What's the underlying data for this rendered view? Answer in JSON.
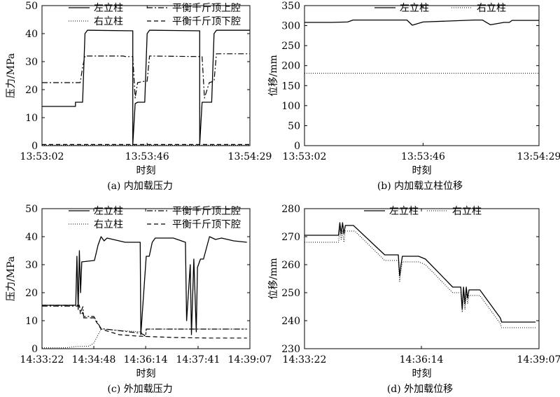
{
  "chart_data": [
    {
      "type": "line",
      "caption": "(a) 内加载压力",
      "xlabel": "时刻",
      "ylabel": "压力/MPa",
      "x_ticks": [
        "13:53:02",
        "13:53:46",
        "13:54:29"
      ],
      "xlim": [
        "13:53:02",
        "13:54:29"
      ],
      "y_ticks": [
        0,
        10,
        20,
        30,
        40,
        50
      ],
      "ylim": [
        0,
        50
      ],
      "legend": "top",
      "series": [
        {
          "name": "左立柱",
          "style": "solid",
          "x": [
            "13:53:02",
            "13:53:16",
            "13:53:16",
            "13:53:19",
            "13:53:20",
            "13:53:21",
            "13:53:22",
            "13:53:40",
            "13:53:40",
            "13:53:41",
            "13:53:42",
            "13:53:45",
            "13:53:46",
            "13:53:47",
            "13:53:48",
            "13:54:08",
            "13:54:08",
            "13:54:09",
            "13:54:10",
            "13:54:13",
            "13:54:14",
            "13:54:15",
            "13:54:29"
          ],
          "y": [
            14,
            14,
            15.5,
            15.5,
            40,
            41.2,
            41.2,
            41,
            0.3,
            15,
            15.5,
            15.5,
            40,
            41.2,
            41.2,
            41,
            0.3,
            15.5,
            15.5,
            15.5,
            40,
            41.2,
            41.2
          ]
        },
        {
          "name": "右立柱",
          "style": "dotted",
          "x": [
            "13:53:02",
            "13:54:29"
          ],
          "y": [
            0.2,
            0.2
          ]
        },
        {
          "name": "平衡千斤顶上腔",
          "style": "dash-dot",
          "x": [
            "13:53:02",
            "13:53:16",
            "13:53:18",
            "13:53:19",
            "13:53:20",
            "13:53:36",
            "13:53:37",
            "13:53:40",
            "13:53:41",
            "13:53:42",
            "13:53:45",
            "13:53:46",
            "13:53:47",
            "13:54:09",
            "13:54:10",
            "13:54:12",
            "13:54:14",
            "13:54:15",
            "13:54:29"
          ],
          "y": [
            22.5,
            22.5,
            22.5,
            28,
            32,
            32,
            31.8,
            31.8,
            17,
            22.5,
            23,
            23,
            32,
            31.8,
            17,
            22.5,
            23,
            32.8,
            32.8
          ]
        },
        {
          "name": "平衡千斤顶下腔",
          "style": "dashed",
          "x": [
            "13:53:02",
            "13:54:29"
          ],
          "y": [
            0.4,
            0.4
          ]
        }
      ]
    },
    {
      "type": "line",
      "caption": "(b) 内加载立柱位移",
      "xlabel": "时刻",
      "ylabel": "位移/mm",
      "x_ticks": [
        "13:53:02",
        "13:53:46",
        "13:54:29"
      ],
      "xlim": [
        "13:53:02",
        "13:54:29"
      ],
      "y_ticks": [
        0,
        50,
        100,
        150,
        200,
        250,
        300,
        350
      ],
      "ylim": [
        0,
        350
      ],
      "legend": "top",
      "series": [
        {
          "name": "左立柱",
          "style": "solid",
          "x": [
            "13:53:02",
            "13:53:12",
            "13:53:18",
            "13:53:20",
            "13:53:40",
            "13:53:42",
            "13:53:46",
            "13:54:05",
            "13:54:08",
            "13:54:11",
            "13:54:16",
            "13:54:18",
            "13:54:19",
            "13:54:29"
          ],
          "y": [
            308,
            308,
            309,
            314,
            314,
            301,
            309,
            314,
            314,
            302,
            308,
            308,
            313,
            313
          ]
        },
        {
          "name": "右立柱",
          "style": "dotted",
          "x": [
            "13:53:02",
            "13:54:29"
          ],
          "y": [
            181,
            181
          ]
        }
      ]
    },
    {
      "type": "line",
      "caption": "(c) 外加载压力",
      "xlabel": "时刻",
      "ylabel": "压力/MPa",
      "x_ticks": [
        "14:33:22",
        "14:34:48",
        "14:36:14",
        "14:37:41",
        "14:39:07"
      ],
      "xlim": [
        "14:33:22",
        "14:39:07"
      ],
      "y_ticks": [
        0,
        10,
        20,
        30,
        40,
        50
      ],
      "ylim": [
        0,
        50
      ],
      "legend": "top",
      "series": [
        {
          "name": "左立柱",
          "style": "solid",
          "x": [
            "14:33:22",
            "14:34:18",
            "14:34:20",
            "14:34:22",
            "14:34:24",
            "14:34:26",
            "14:34:28",
            "14:34:49",
            "14:34:55",
            "14:35:00",
            "14:35:05",
            "14:35:10",
            "14:35:20",
            "14:35:40",
            "14:36:05",
            "14:36:06",
            "14:36:15",
            "14:36:20",
            "14:36:25",
            "14:36:30",
            "14:37:00",
            "14:37:20",
            "14:37:22",
            "14:37:28",
            "14:37:30",
            "14:37:34",
            "14:37:38",
            "14:37:40",
            "14:37:45",
            "14:37:50",
            "14:38:00",
            "14:38:10",
            "14:38:20",
            "14:38:40",
            "14:39:02"
          ],
          "y": [
            15.5,
            15.5,
            33,
            14,
            35,
            20,
            31,
            31.5,
            37,
            40,
            38.5,
            39.5,
            39,
            38,
            38,
            5,
            33,
            33,
            38,
            39.5,
            39.5,
            38,
            10,
            30,
            5,
            32,
            6,
            29,
            32,
            32,
            40,
            39,
            39.5,
            38.5,
            38
          ]
        },
        {
          "name": "右立柱",
          "style": "dotted",
          "x": [
            "14:33:22",
            "14:34:00",
            "14:34:20",
            "14:34:40",
            "14:34:48",
            "14:35:00",
            "14:36:06",
            "14:36:14",
            "14:36:15",
            "14:36:30",
            "14:39:02"
          ],
          "y": [
            0.3,
            0.3,
            0.8,
            0.9,
            2,
            7,
            6,
            4.2,
            7,
            7,
            7
          ]
        },
        {
          "name": "平衡千斤顶上腔",
          "style": "dash-dot",
          "x": [
            "14:33:22",
            "14:34:24",
            "14:34:26",
            "14:34:30",
            "14:34:31",
            "14:34:48",
            "14:35:00",
            "14:36:06",
            "14:36:14",
            "14:36:15",
            "14:36:30",
            "14:39:02"
          ],
          "y": [
            15.2,
            15.2,
            13,
            15,
            11.5,
            11.5,
            7.2,
            5.5,
            4.6,
            7,
            7,
            7
          ]
        },
        {
          "name": "平衡千斤顶下腔",
          "style": "dashed",
          "x": [
            "14:33:22",
            "14:34:24",
            "14:34:26",
            "14:34:30",
            "14:34:31",
            "14:34:48",
            "14:35:00",
            "14:35:30",
            "14:36:00",
            "14:37:00",
            "14:38:00",
            "14:39:02"
          ],
          "y": [
            15.5,
            15.5,
            12,
            13,
            11,
            11,
            7,
            5,
            4.5,
            4,
            3.8,
            3.8
          ]
        }
      ]
    },
    {
      "type": "line",
      "caption": "(d) 外加载位移",
      "xlabel": "时刻",
      "ylabel": "位移/mm",
      "x_ticks": [
        "14:33:22",
        "14:36:14",
        "14:39:07"
      ],
      "xlim": [
        "14:33:22",
        "14:39:07"
      ],
      "y_ticks": [
        230,
        240,
        250,
        260,
        270,
        280
      ],
      "ylim": [
        230,
        280
      ],
      "legend": "top",
      "series": [
        {
          "name": "左立柱",
          "style": "solid",
          "x": [
            "14:33:22",
            "14:34:12",
            "14:34:14",
            "14:34:16",
            "14:34:18",
            "14:34:20",
            "14:34:22",
            "14:34:34",
            "14:35:20",
            "14:35:40",
            "14:35:42",
            "14:35:44",
            "14:35:46",
            "14:36:10",
            "14:36:20",
            "14:37:00",
            "14:37:12",
            "14:37:14",
            "14:37:16",
            "14:37:18",
            "14:37:20",
            "14:37:22",
            "14:37:24",
            "14:37:26",
            "14:37:40",
            "14:38:10",
            "14:38:12",
            "14:39:02"
          ],
          "y": [
            270.5,
            270.5,
            275,
            271,
            275,
            271,
            274,
            274,
            263.5,
            263.5,
            256,
            260,
            263,
            263,
            262,
            252,
            252,
            244,
            252,
            246,
            252,
            248,
            251,
            251,
            251,
            241,
            239.5,
            239.5
          ]
        },
        {
          "name": "右立柱",
          "style": "dotted",
          "x": [
            "14:33:22",
            "14:34:12",
            "14:34:14",
            "14:34:16",
            "14:34:18",
            "14:34:20",
            "14:34:22",
            "14:34:36",
            "14:35:20",
            "14:35:40",
            "14:35:42",
            "14:35:44",
            "14:35:46",
            "14:36:10",
            "14:36:20",
            "14:37:00",
            "14:37:12",
            "14:37:14",
            "14:37:16",
            "14:37:18",
            "14:37:20",
            "14:37:22",
            "14:37:24",
            "14:37:26",
            "14:37:40",
            "14:38:10",
            "14:38:12",
            "14:39:02"
          ],
          "y": [
            268,
            268,
            273,
            269,
            272,
            268,
            272,
            272,
            261.5,
            261.5,
            254,
            258,
            261,
            261,
            260,
            250,
            250,
            243,
            250,
            244,
            250,
            246,
            249,
            249,
            249,
            239,
            237.5,
            237.5
          ]
        }
      ]
    }
  ]
}
